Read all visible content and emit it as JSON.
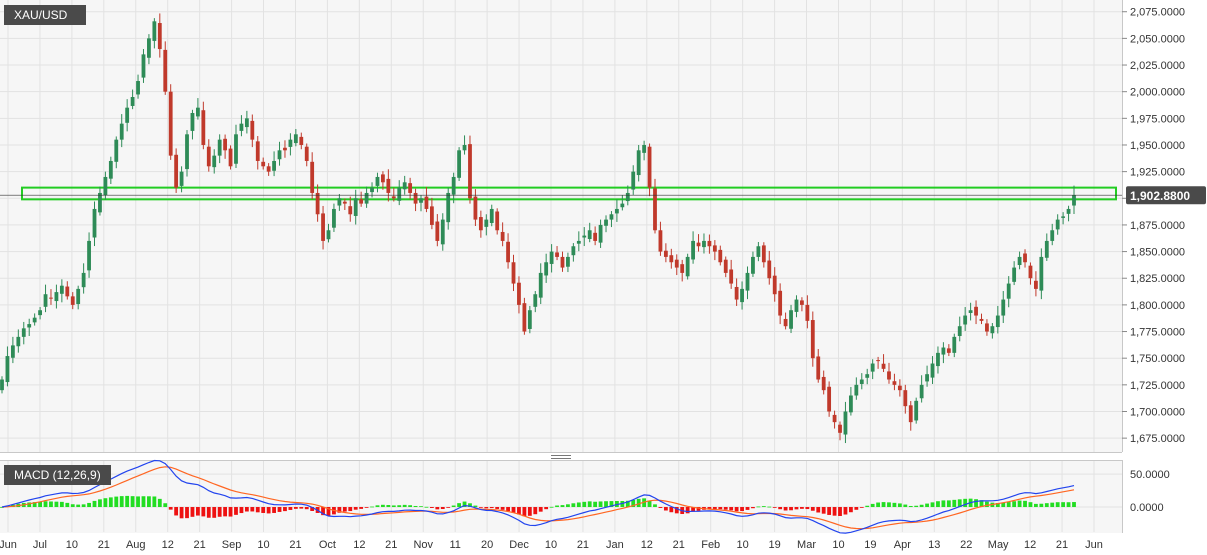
{
  "symbol": "XAU/USD",
  "macd_label": "MACD (12,26,9)",
  "last_price_label": "1,902.8800",
  "colors": {
    "up": "#2e8b57",
    "down": "#c0392b",
    "zone": "#22cc22",
    "macd_line": "#2244ee",
    "signal_line": "#ff6622",
    "hist_up": "#22dd22",
    "hist_down": "#ee1111",
    "grid": "#e2e2e2"
  },
  "chart_data": [
    {
      "type": "candlestick",
      "title": "",
      "x_ticks": [
        "Jun",
        "Jul",
        "10",
        "21",
        "Aug",
        "12",
        "21",
        "Sep",
        "10",
        "21",
        "Oct",
        "12",
        "21",
        "Nov",
        "11",
        "20",
        "Dec",
        "10",
        "21",
        "Jan",
        "12",
        "21",
        "Feb",
        "10",
        "19",
        "Mar",
        "10",
        "19",
        "Apr",
        "13",
        "22",
        "May",
        "12",
        "21",
        "Jun"
      ],
      "y_ticks": [
        "2,075.0000",
        "2,050.0000",
        "2,025.0000",
        "2,000.0000",
        "1,975.0000",
        "1,950.0000",
        "1,925.0000",
        "1,900.0000",
        "1,875.0000",
        "1,850.0000",
        "1,825.0000",
        "1,800.0000",
        "1,775.0000",
        "1,750.0000",
        "1,725.0000",
        "1,700.0000",
        "1,675.0000"
      ],
      "ylim": [
        1662,
        2086
      ],
      "last_price": 1902.88,
      "resistance_zone": [
        1899,
        1910
      ],
      "close_series": [
        1730,
        1752,
        1762,
        1770,
        1778,
        1782,
        1788,
        1795,
        1810,
        1806,
        1812,
        1818,
        1808,
        1800,
        1815,
        1830,
        1860,
        1890,
        1905,
        1920,
        1935,
        1955,
        1970,
        1985,
        1995,
        2010,
        2035,
        2050,
        2066,
        2040,
        2000,
        1940,
        1910,
        1925,
        1960,
        1980,
        1985,
        1950,
        1930,
        1940,
        1955,
        1945,
        1930,
        1960,
        1970,
        1975,
        1955,
        1935,
        1930,
        1925,
        1935,
        1945,
        1945,
        1955,
        1960,
        1950,
        1935,
        1905,
        1885,
        1860,
        1870,
        1890,
        1900,
        1895,
        1885,
        1900,
        1895,
        1905,
        1910,
        1920,
        1915,
        1905,
        1900,
        1910,
        1915,
        1905,
        1895,
        1900,
        1890,
        1875,
        1860,
        1880,
        1905,
        1920,
        1945,
        1950,
        1900,
        1880,
        1870,
        1880,
        1890,
        1870,
        1860,
        1840,
        1820,
        1800,
        1775,
        1795,
        1810,
        1830,
        1840,
        1850,
        1845,
        1835,
        1845,
        1855,
        1860,
        1865,
        1870,
        1860,
        1875,
        1880,
        1885,
        1890,
        1895,
        1905,
        1925,
        1945,
        1950,
        1910,
        1870,
        1850,
        1845,
        1840,
        1835,
        1830,
        1845,
        1860,
        1855,
        1860,
        1855,
        1850,
        1840,
        1830,
        1820,
        1805,
        1815,
        1830,
        1845,
        1855,
        1840,
        1825,
        1810,
        1790,
        1780,
        1795,
        1805,
        1800,
        1785,
        1750,
        1730,
        1720,
        1700,
        1690,
        1680,
        1700,
        1715,
        1725,
        1730,
        1735,
        1745,
        1748,
        1740,
        1730,
        1725,
        1720,
        1705,
        1690,
        1710,
        1725,
        1735,
        1745,
        1755,
        1760,
        1755,
        1770,
        1780,
        1790,
        1795,
        1790,
        1785,
        1775,
        1780,
        1790,
        1805,
        1820,
        1835,
        1845,
        1840,
        1825,
        1815,
        1845,
        1860,
        1870,
        1880,
        1883,
        1890,
        1902.88
      ]
    },
    {
      "type": "line",
      "title": "",
      "y_ticks": [
        "50.0000",
        "0.0000"
      ],
      "ylim": [
        -38,
        70
      ],
      "series": [
        {
          "name": "",
          "role": "macd"
        },
        {
          "name": "",
          "role": "signal"
        },
        {
          "name": "",
          "role": "histogram"
        }
      ]
    }
  ]
}
